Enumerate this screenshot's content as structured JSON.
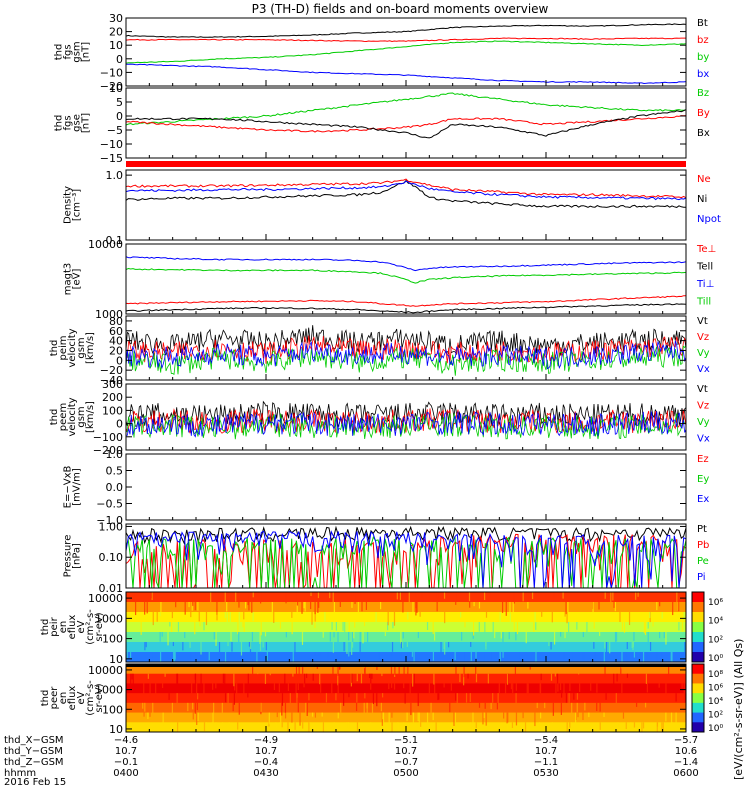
{
  "title": "P3 (TH-D) fields and on-board moments overview",
  "date_label": "2016 Feb 15",
  "chart_data": [
    {
      "type": "line",
      "panel_label": [
        "thd",
        "fgs",
        "gsm",
        "[nT]"
      ],
      "ylim": [
        -20,
        30
      ],
      "ticks": [
        {
          "v": 30,
          "label": "30"
        },
        {
          "v": 20,
          "label": "20"
        },
        {
          "v": 10,
          "label": "10"
        },
        {
          "v": 0,
          "label": "0"
        },
        {
          "v": -10,
          "label": "−10"
        },
        {
          "v": -20,
          "label": "−20"
        }
      ],
      "x": [
        0,
        10,
        20,
        30,
        40,
        50,
        60,
        70,
        80,
        90,
        100,
        110,
        120
      ],
      "series": [
        {
          "name": "Bt",
          "color": "#000000",
          "values": [
            17,
            16,
            16,
            16.5,
            17.5,
            19,
            20,
            23,
            24,
            24.5,
            24,
            25,
            25.5
          ]
        },
        {
          "name": "bz",
          "color": "#ff0000",
          "values": [
            14,
            14,
            14,
            14,
            13.5,
            13,
            13,
            14,
            15,
            15,
            14.5,
            15,
            15
          ]
        },
        {
          "name": "by",
          "color": "#00cc00",
          "values": [
            -3,
            -2,
            0,
            1,
            3,
            6,
            9,
            12,
            13,
            12,
            11,
            10,
            11
          ]
        },
        {
          "name": "bx",
          "color": "#0000ff",
          "values": [
            -4,
            -5,
            -6,
            -8,
            -10,
            -11,
            -12,
            -14,
            -16,
            -17,
            -17,
            -18,
            -17
          ]
        }
      ]
    },
    {
      "type": "line",
      "panel_label": [
        "thd",
        "fgs",
        "gse",
        "[nT]"
      ],
      "ylim": [
        -15,
        10
      ],
      "ticks": [
        {
          "v": 10,
          "label": "10"
        },
        {
          "v": 5,
          "label": "5"
        },
        {
          "v": 0,
          "label": "0"
        },
        {
          "v": -5,
          "label": "−5"
        },
        {
          "v": -10,
          "label": "−10"
        },
        {
          "v": -15,
          "label": "−15"
        }
      ],
      "x": [
        0,
        10,
        20,
        30,
        40,
        50,
        60,
        65,
        70,
        80,
        90,
        100,
        110,
        120
      ],
      "series": [
        {
          "name": "Bz",
          "color": "#00cc00",
          "values": [
            -3,
            -2,
            -1,
            0,
            2,
            4,
            6,
            7,
            8,
            6,
            4,
            3,
            2,
            2
          ]
        },
        {
          "name": "By",
          "color": "#ff0000",
          "values": [
            -2,
            -3,
            -4,
            -5,
            -5.5,
            -5,
            -4,
            -3,
            -1,
            -1,
            -3,
            -2,
            -1,
            0
          ]
        },
        {
          "name": "Bx",
          "color": "#000000",
          "values": [
            -1,
            -1,
            -1,
            -2,
            -3,
            -4,
            -6,
            -8,
            -3,
            -4,
            -7,
            -3,
            0,
            2
          ]
        }
      ]
    },
    {
      "type": "line",
      "panel_label": [
        "Density",
        "[cm⁻³]"
      ],
      "scale": "log",
      "ylim": [
        0.1,
        1.2
      ],
      "ticks": [
        {
          "v": 1,
          "label": "1.0"
        },
        {
          "v": 0.1,
          "label": "0.1"
        }
      ],
      "x": [
        0,
        10,
        20,
        30,
        40,
        50,
        55,
        60,
        65,
        70,
        80,
        90,
        100,
        110,
        120
      ],
      "series": [
        {
          "name": "Ne",
          "color": "#ff0000",
          "values": [
            0.68,
            0.68,
            0.68,
            0.7,
            0.72,
            0.74,
            0.76,
            0.85,
            0.7,
            0.6,
            0.55,
            0.5,
            0.5,
            0.48,
            0.46
          ]
        },
        {
          "name": "Ni",
          "color": "#000000",
          "values": [
            0.42,
            0.44,
            0.44,
            0.46,
            0.48,
            0.5,
            0.55,
            0.8,
            0.45,
            0.4,
            0.36,
            0.33,
            0.33,
            0.33,
            0.33
          ]
        },
        {
          "name": "Npot",
          "color": "#0000ff",
          "values": [
            0.58,
            0.58,
            0.6,
            0.6,
            0.62,
            0.64,
            0.66,
            0.78,
            0.62,
            0.55,
            0.5,
            0.46,
            0.45,
            0.44,
            0.43
          ]
        }
      ]
    },
    {
      "type": "line",
      "panel_label": [
        "magt3",
        "[eV]"
      ],
      "scale": "log",
      "ylim": [
        1000,
        10000
      ],
      "ticks": [
        {
          "v": 10000,
          "label": "10000"
        },
        {
          "v": 1000,
          "label": "1000"
        }
      ],
      "x": [
        0,
        10,
        20,
        30,
        40,
        50,
        55,
        62,
        65,
        70,
        80,
        90,
        100,
        110,
        120
      ],
      "series": [
        {
          "name": "Te⊥",
          "color": "#ff0000",
          "values": [
            1400,
            1450,
            1500,
            1520,
            1550,
            1500,
            1400,
            1300,
            1350,
            1400,
            1450,
            1500,
            1600,
            1700,
            1800
          ]
        },
        {
          "name": "Tell",
          "color": "#000000",
          "values": [
            1100,
            1150,
            1200,
            1220,
            1200,
            1150,
            1100,
            1050,
            1100,
            1150,
            1200,
            1250,
            1300,
            1350,
            1400
          ]
        },
        {
          "name": "Ti⊥",
          "color": "#0000ff",
          "values": [
            6500,
            6200,
            6000,
            6000,
            6000,
            5800,
            5500,
            4200,
            4500,
            4700,
            4800,
            5000,
            5200,
            5400,
            5500
          ]
        },
        {
          "name": "Till",
          "color": "#00cc00",
          "values": [
            4400,
            4300,
            4200,
            4200,
            4200,
            4000,
            3800,
            2800,
            3100,
            3300,
            3500,
            3600,
            3700,
            3800,
            3900
          ]
        }
      ]
    },
    {
      "type": "line",
      "panel_label": [
        "thd",
        "peim",
        "velocity",
        "gsm",
        "[km/s]"
      ],
      "ylim": [
        -40,
        90
      ],
      "ticks": [
        {
          "v": 80,
          "label": "80"
        },
        {
          "v": 60,
          "label": "60"
        },
        {
          "v": 40,
          "label": "40"
        },
        {
          "v": 20,
          "label": "20"
        },
        {
          "v": 0,
          "label": "0"
        },
        {
          "v": -20,
          "label": "−20"
        },
        {
          "v": -40,
          "label": "−40"
        }
      ],
      "x": [
        0,
        10,
        20,
        30,
        40,
        50,
        60,
        70,
        80,
        90,
        100,
        110,
        120
      ],
      "series": [
        {
          "name": "Vt",
          "color": "#000000",
          "values": [
            40,
            30,
            45,
            35,
            50,
            35,
            45,
            30,
            40,
            30,
            35,
            40,
            45
          ]
        },
        {
          "name": "Vz",
          "color": "#ff0000",
          "values": [
            20,
            15,
            25,
            15,
            30,
            20,
            25,
            15,
            20,
            15,
            20,
            25,
            30
          ]
        },
        {
          "name": "Vy",
          "color": "#00cc00",
          "values": [
            0,
            -10,
            5,
            -5,
            10,
            -5,
            5,
            -10,
            0,
            -5,
            0,
            5,
            10
          ]
        },
        {
          "name": "Vx",
          "color": "#0000ff",
          "values": [
            10,
            5,
            15,
            5,
            20,
            10,
            15,
            5,
            10,
            5,
            10,
            15,
            20
          ]
        }
      ]
    },
    {
      "type": "line",
      "panel_label": [
        "thd",
        "peem",
        "velocity",
        "gsm",
        "[km/s]"
      ],
      "ylim": [
        -200,
        300
      ],
      "ticks": [
        {
          "v": 300,
          "label": "300"
        },
        {
          "v": 200,
          "label": "200"
        },
        {
          "v": 100,
          "label": "100"
        },
        {
          "v": 0,
          "label": "0"
        },
        {
          "v": -100,
          "label": "−100"
        },
        {
          "v": -200,
          "label": "−200"
        }
      ],
      "x": [
        0,
        10,
        20,
        30,
        40,
        50,
        60,
        70,
        80,
        90,
        100,
        110,
        120
      ],
      "series": [
        {
          "name": "Vt",
          "color": "#000000",
          "values": [
            60,
            70,
            60,
            80,
            70,
            60,
            70,
            80,
            60,
            70,
            60,
            70,
            80
          ]
        },
        {
          "name": "Vz",
          "color": "#ff0000",
          "values": [
            10,
            20,
            10,
            30,
            20,
            10,
            20,
            30,
            10,
            20,
            10,
            20,
            30
          ]
        },
        {
          "name": "Vy",
          "color": "#00cc00",
          "values": [
            -30,
            -20,
            -40,
            -10,
            -20,
            -30,
            -20,
            -10,
            -30,
            -20,
            -30,
            -20,
            -10
          ]
        },
        {
          "name": "Vx",
          "color": "#0000ff",
          "values": [
            -10,
            0,
            -20,
            10,
            0,
            -10,
            0,
            10,
            -10,
            0,
            -10,
            0,
            10
          ]
        }
      ]
    },
    {
      "type": "line",
      "panel_label": [
        "E=−VxB",
        "[mV/m]"
      ],
      "ylim": [
        -1,
        1
      ],
      "ticks": [
        {
          "v": 1,
          "label": "1.0"
        },
        {
          "v": 0.5,
          "label": "0.5"
        },
        {
          "v": 0,
          "label": "0.0"
        },
        {
          "v": -0.5,
          "label": "−0.5"
        },
        {
          "v": -1,
          "label": "−1.0"
        }
      ],
      "x": [],
      "series": [
        {
          "name": "Ez",
          "color": "#ff0000",
          "values": []
        },
        {
          "name": "Ey",
          "color": "#00cc00",
          "values": []
        },
        {
          "name": "Ex",
          "color": "#0000ff",
          "values": []
        }
      ]
    },
    {
      "type": "line",
      "panel_label": [
        "Pressure",
        "[nPa]"
      ],
      "scale": "log",
      "ylim": [
        0.01,
        1.2
      ],
      "ticks": [
        {
          "v": 1,
          "label": "1.00"
        },
        {
          "v": 0.1,
          "label": "0.10"
        },
        {
          "v": 0.01,
          "label": "0.01"
        }
      ],
      "x": [
        0,
        10,
        20,
        30,
        40,
        50,
        60,
        70,
        80,
        90,
        100,
        110,
        120
      ],
      "series": [
        {
          "name": "Pt",
          "color": "#000000",
          "values": [
            0.55,
            0.56,
            0.58,
            0.6,
            0.62,
            0.64,
            0.66,
            0.65,
            0.62,
            0.6,
            0.62,
            0.64,
            0.66
          ]
        },
        {
          "name": "Pb",
          "color": "#ff0000",
          "values": [
            0.09,
            0.08,
            0.09,
            0.1,
            0.11,
            0.13,
            0.16,
            0.22,
            0.26,
            0.25,
            0.24,
            0.25,
            0.26
          ]
        },
        {
          "name": "Pe",
          "color": "#00cc00",
          "values": [
            0.12,
            0.12,
            0.13,
            0.13,
            0.14,
            0.15,
            0.15,
            0.16,
            0.14,
            0.12,
            0.11,
            0.1,
            0.1
          ]
        },
        {
          "name": "Pi",
          "color": "#0000ff",
          "values": [
            0.36,
            0.37,
            0.38,
            0.4,
            0.41,
            0.4,
            0.38,
            0.3,
            0.26,
            0.24,
            0.23,
            0.22,
            0.22
          ]
        }
      ]
    },
    {
      "type": "heatmap",
      "panel_label": [
        "thd",
        "peir",
        "en",
        "eflux",
        "eV",
        "(cm²-s-",
        "sr-eV)"
      ],
      "scale": "log",
      "ylim": [
        7,
        20000
      ],
      "ticks": [
        {
          "v": 10000,
          "label": "10000"
        },
        {
          "v": 1000,
          "label": "1000"
        },
        {
          "v": 100,
          "label": "100"
        },
        {
          "v": 10,
          "label": "10"
        }
      ],
      "x": [
        0,
        30,
        55,
        62,
        70,
        120
      ],
      "bands": [
        "#ff3300",
        "#ff9900",
        "#ffee00",
        "#ccff33",
        "#66ee99",
        "#33ccdd",
        "#2277ff"
      ],
      "colorbar_ticks": [
        "10⁶",
        "10⁴",
        "10²",
        "10⁰"
      ]
    },
    {
      "type": "heatmap",
      "panel_label": [
        "thd",
        "peer",
        "en",
        "eflux",
        "eV",
        "(cm²-s-",
        "sr-eV)"
      ],
      "scale": "log",
      "ylim": [
        7,
        20000
      ],
      "ticks": [
        {
          "v": 10000,
          "label": "10000"
        },
        {
          "v": 1000,
          "label": "1000"
        },
        {
          "v": 100,
          "label": "100"
        },
        {
          "v": 10,
          "label": "10"
        }
      ],
      "x": [
        0,
        30,
        60,
        70,
        120
      ],
      "bands": [
        "#ff8800",
        "#ff2200",
        "#ee0000",
        "#ff2200",
        "#ff6600",
        "#ffaa00",
        "#ffdd00"
      ],
      "colorbar_ticks": [
        "10⁸",
        "10⁶",
        "10⁴",
        "10²",
        "10⁰"
      ]
    }
  ],
  "colorbar_label": "[eV/(cm²-s-sr-eV)] (All Qs)",
  "xaxis": {
    "tick_labels": [
      "0400",
      "0430",
      "0500",
      "0530",
      "0600"
    ],
    "rows": [
      {
        "label": "thd_X−GSM",
        "values": [
          "−4.6",
          "−4.9",
          "−5.1",
          "−5.4",
          "−5.7"
        ]
      },
      {
        "label": "thd_Y−GSM",
        "values": [
          "10.7",
          "10.7",
          "10.7",
          "10.7",
          "10.6"
        ]
      },
      {
        "label": "thd_Z−GSM",
        "values": [
          "−0.1",
          "−0.4",
          "−0.7",
          "−1.1",
          "−1.4"
        ]
      },
      {
        "label": "hhmm",
        "values": [
          "0400",
          "0430",
          "0500",
          "0530",
          "0600"
        ]
      }
    ]
  }
}
